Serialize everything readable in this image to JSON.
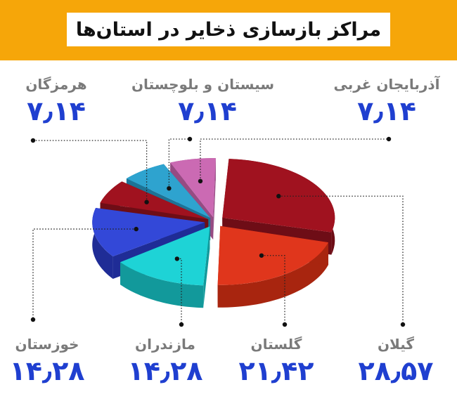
{
  "title": "مراکز بازسازی ذخایر در استان‌ها",
  "chart_data": {
    "type": "pie",
    "title": "مراکز بازسازی ذخایر در استان‌ها",
    "slices": [
      {
        "name": "گیلان",
        "value": 28.57,
        "label": "۲۸٫۵۷",
        "color": "#a0121f",
        "side": "#6e0d16"
      },
      {
        "name": "گلستان",
        "value": 21.42,
        "label": "۲۱٫۴۲",
        "color": "#e0361c",
        "side": "#a8250f"
      },
      {
        "name": "مازندران",
        "value": 14.28,
        "label": "۱۴٫۲۸",
        "color": "#1ed3d6",
        "side": "#12999b"
      },
      {
        "name": "خوزستان",
        "value": 14.28,
        "label": "۱۴٫۲۸",
        "color": "#3348d8",
        "side": "#1f2c96"
      },
      {
        "name": "هرمزگان",
        "value": 7.14,
        "label": "۷٫۱۴",
        "color": "#a0121f",
        "side": "#6e0d16"
      },
      {
        "name": "سیستان و بلوچستان",
        "value": 7.14,
        "label": "۷٫۱۴",
        "color": "#2ea3cf",
        "side": "#1d7396"
      },
      {
        "name": "آذربایجان غربی",
        "value": 7.14,
        "label": "۷٫۱۴",
        "color": "#cb6ab3",
        "side": "#964b83"
      }
    ]
  }
}
